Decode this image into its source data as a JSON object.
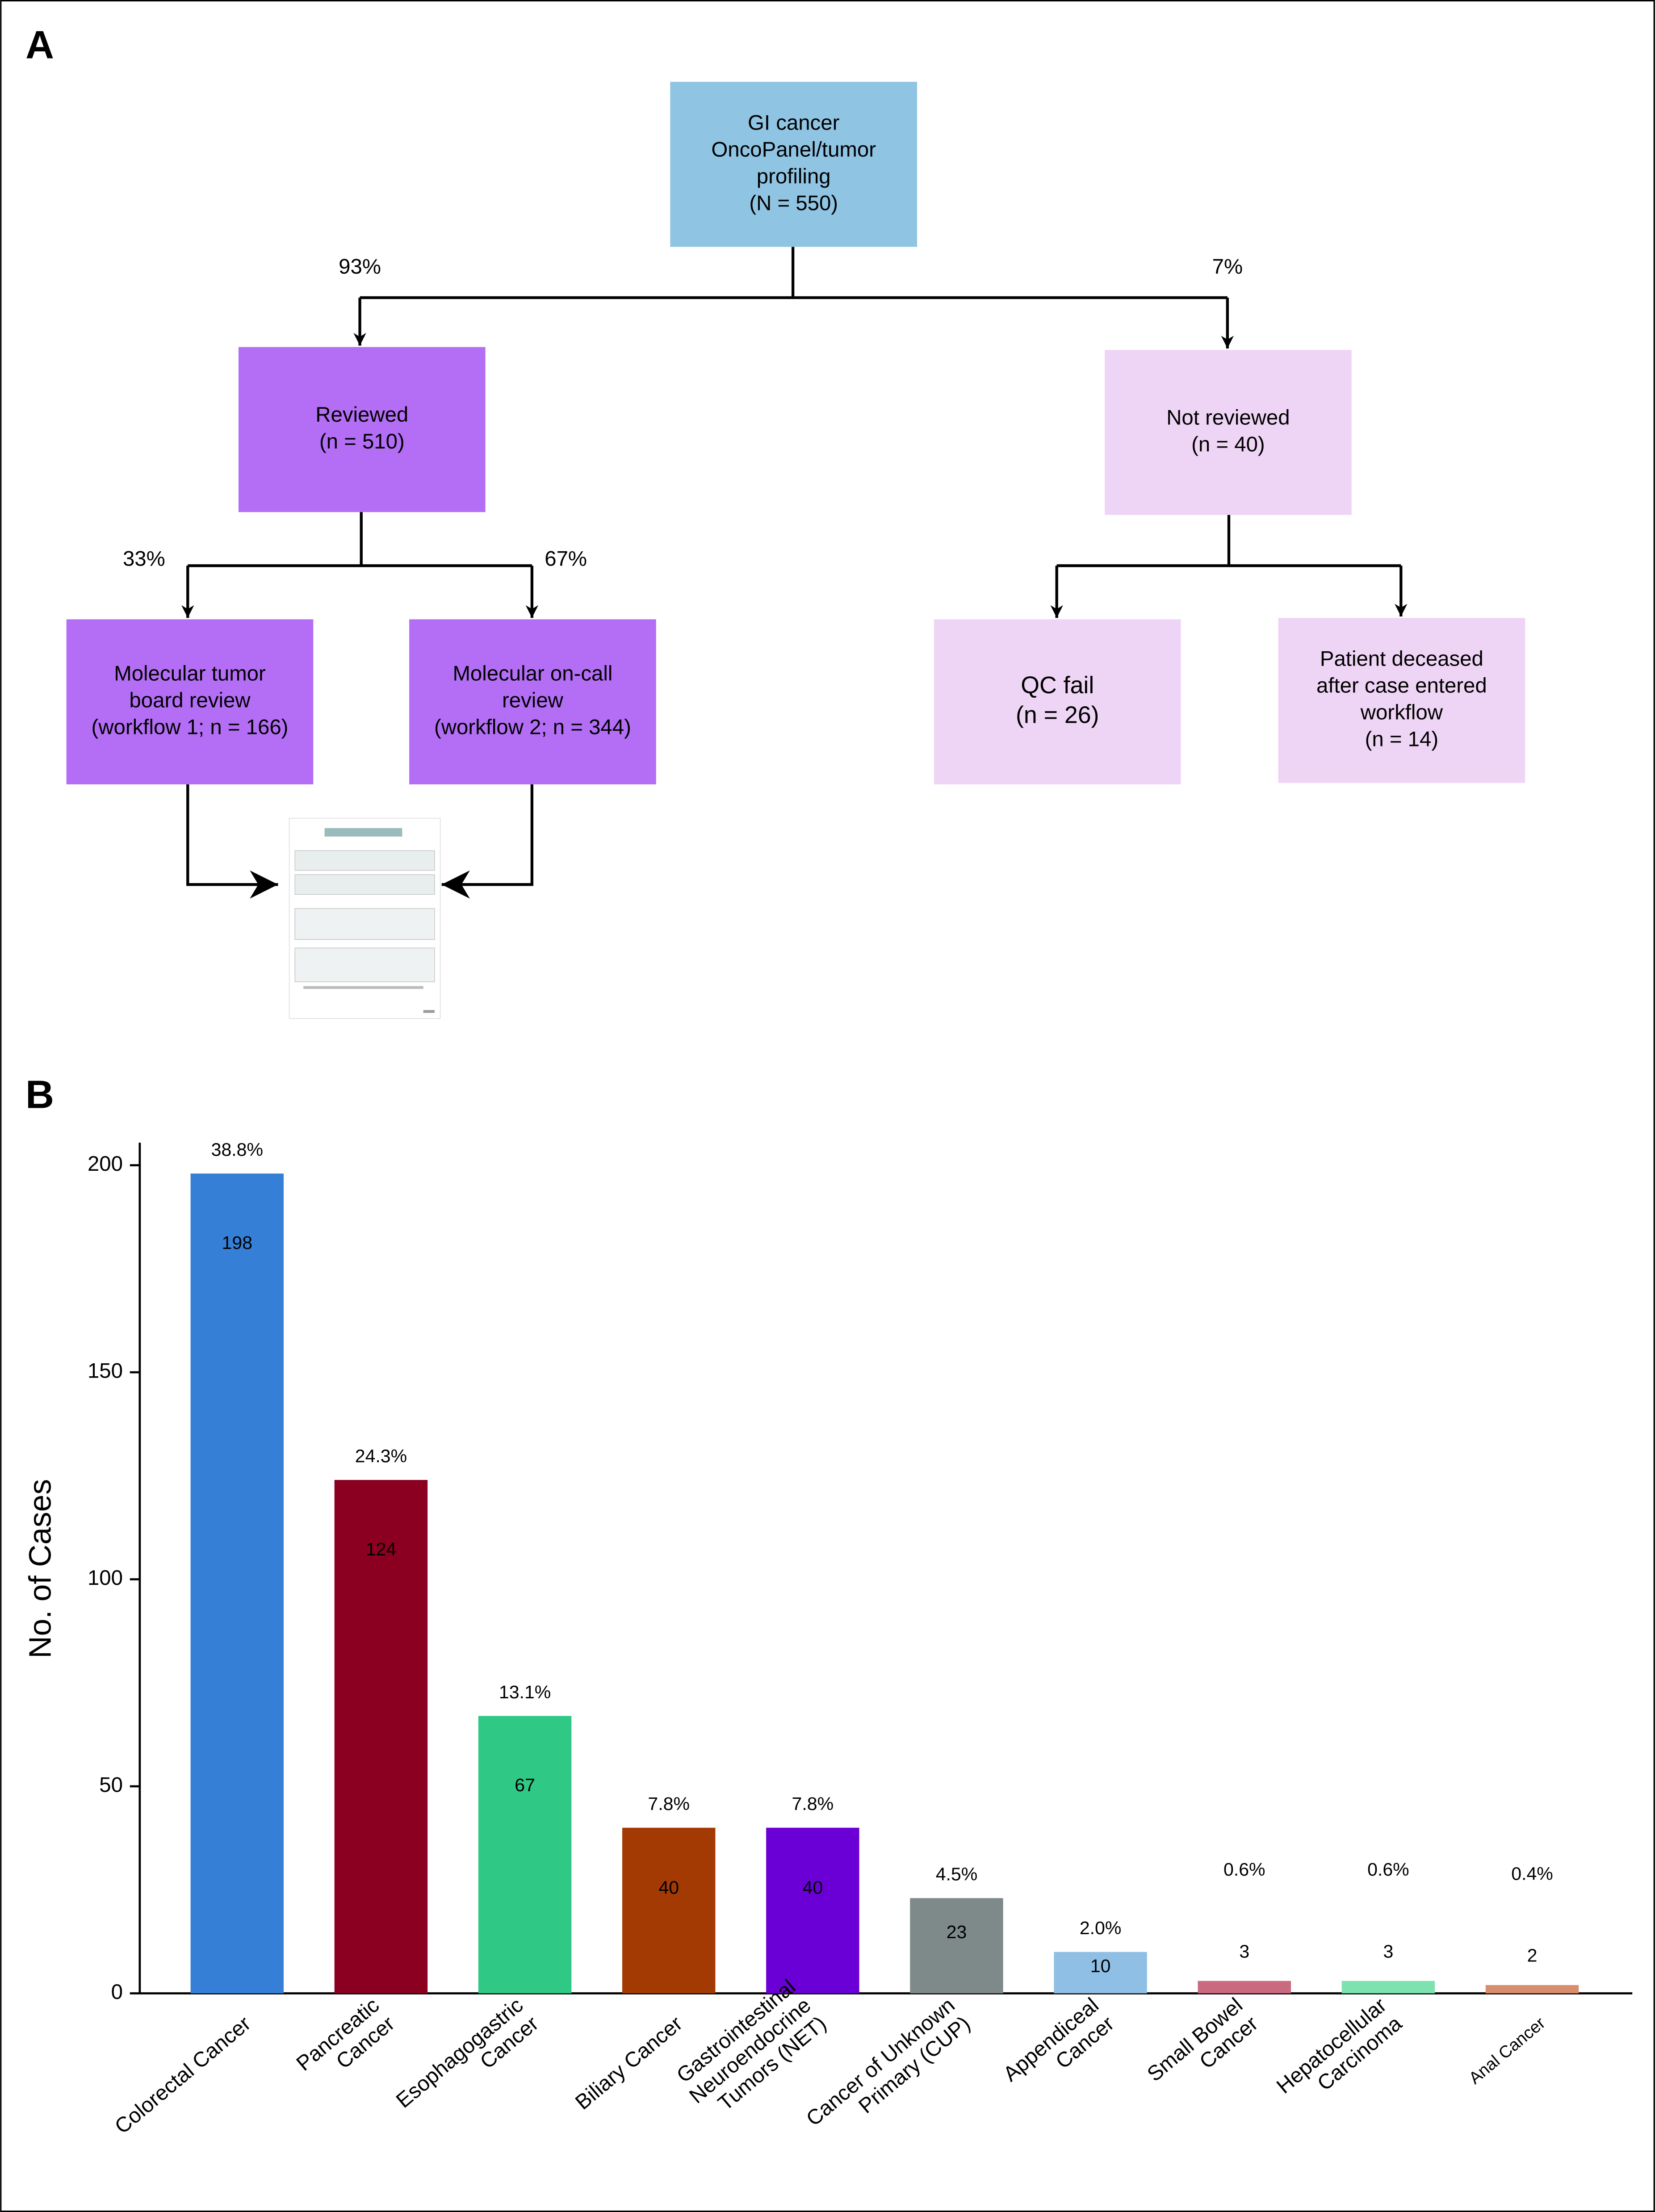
{
  "panels": [
    "A",
    "B"
  ],
  "diagram": {
    "nodes": [
      {
        "lines": [
          "GI cancer",
          "OncoPanel/tumor",
          "profiling",
          "(N = 550)"
        ]
      },
      {
        "lines": [
          "Reviewed",
          "(n = 510)"
        ]
      },
      {
        "lines": [
          "Not reviewed",
          "(n = 40)"
        ]
      },
      {
        "lines": [
          "Molecular tumor",
          "board review",
          "(workflow 1; n = 166)"
        ]
      },
      {
        "lines": [
          "Molecular on-call",
          "review",
          "(workflow 2; n = 344)"
        ]
      },
      {
        "lines": [
          "QC fail",
          "(n = 26)"
        ]
      },
      {
        "lines": [
          "Patient deceased",
          "after case entered",
          "workflow",
          "(n = 14)"
        ]
      }
    ],
    "edge_labels": [
      "93%",
      "7%",
      "33%",
      "67%"
    ]
  },
  "chart_data": {
    "type": "bar",
    "categories": [
      "Colorectal Cancer",
      "Pancreatic\nCancer",
      "Esophagogastric\nCancer",
      "Biliary Cancer",
      "Gastrointestinal\nNeuroendocrine\nTumors (NET)",
      "Cancer of Unknown\nPrimary (CUP)",
      "Appendiceal\nCancer",
      "Small Bowel\nCancer",
      "Hepatocellular\nCarcinoma",
      "Anal Cancer"
    ],
    "values": [
      198,
      124,
      67,
      40,
      40,
      23,
      10,
      3,
      3,
      2
    ],
    "percent_labels": [
      "38.8%",
      "24.3%",
      "13.1%",
      "7.8%",
      "7.8%",
      "4.5%",
      "2.0%",
      "0.6%",
      "0.6%",
      "0.4%"
    ],
    "colors": [
      "#3580d6",
      "#8b0021",
      "#2fc884",
      "#a33a04",
      "#6a00d6",
      "#7e8a89",
      "#8fbfe4",
      "#c96a7f",
      "#7ee2b0",
      "#d98e6c"
    ],
    "y_label": "No. of Cases",
    "ylim": [
      0,
      200
    ],
    "yticks": [
      0,
      50,
      100,
      150,
      200
    ]
  }
}
